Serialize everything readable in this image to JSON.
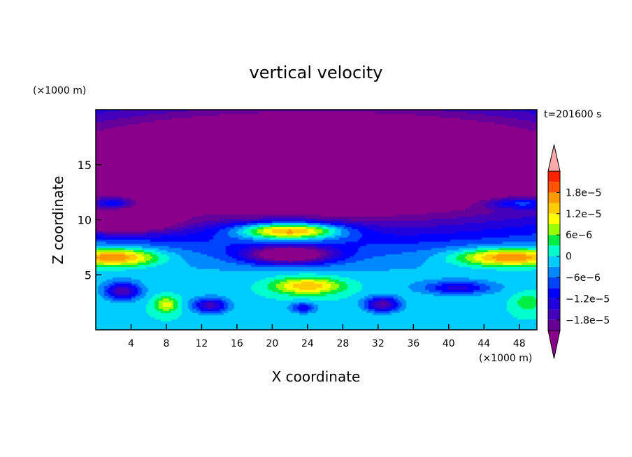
{
  "chart_data": {
    "type": "heatmap",
    "title": "vertical velocity",
    "xlabel": "X coordinate",
    "ylabel": "Z coordinate",
    "x_unit": "(×1000 m)",
    "y_unit": "(×1000 m)",
    "time_label": "t=201600 s",
    "xlim": [
      0,
      50
    ],
    "ylim": [
      0,
      20
    ],
    "x_ticks": [
      4,
      8,
      12,
      16,
      20,
      24,
      28,
      32,
      36,
      40,
      44,
      48
    ],
    "y_ticks": [
      5,
      10,
      15
    ],
    "colorbar": {
      "levels": [
        -2.1e-05,
        -1.8e-05,
        -1.5e-05,
        -1.2e-05,
        -9e-06,
        -6e-06,
        -3e-06,
        0,
        3e-06,
        6e-06,
        9e-06,
        1.2e-05,
        1.5e-05,
        1.8e-05,
        2.1e-05
      ],
      "tick_values": [
        1.8e-05,
        1.2e-05,
        6e-06,
        0,
        -6e-06,
        -1.2e-05,
        -1.8e-05
      ],
      "tick_labels": [
        "1.8e−5",
        "1.2e−5",
        "6e−6",
        "0",
        "−6e−6",
        "−1.2e−5",
        "−1.8e−5"
      ],
      "colors": [
        "#660099",
        "#4400bb",
        "#2200dd",
        "#0000ff",
        "#0044ff",
        "#0088ff",
        "#00ccff",
        "#00ffcc",
        "#00ee44",
        "#99ff00",
        "#ffff00",
        "#ffcc00",
        "#ff9900",
        "#ff5500",
        "#ff2200"
      ],
      "under_color": "#8b008b",
      "over_color": "#ffaaaa"
    },
    "field_features": [
      {
        "x": 25,
        "z": 15,
        "sx": 40,
        "sz": 6,
        "value": -4e-05
      },
      {
        "x": 22,
        "z": 9.0,
        "sx": 6,
        "sz": 0.8,
        "value": 3e-05
      },
      {
        "x": 2,
        "z": 6.6,
        "sx": 5,
        "sz": 0.8,
        "value": 2.2e-05
      },
      {
        "x": 47,
        "z": 6.6,
        "sx": 6,
        "sz": 0.8,
        "value": 2.2e-05
      },
      {
        "x": 24,
        "z": 4.0,
        "sx": 4,
        "sz": 0.8,
        "value": 1.6e-05
      },
      {
        "x": 8,
        "z": 2.3,
        "sx": 1.3,
        "sz": 0.7,
        "value": 1.1e-05
      },
      {
        "x": 49,
        "z": 2.5,
        "sx": 1.5,
        "sz": 0.8,
        "value": 6e-06
      },
      {
        "x": 22,
        "z": 6.8,
        "sx": 5,
        "sz": 0.8,
        "value": -2.4e-05
      },
      {
        "x": 2.5,
        "z": 9.8,
        "sx": 6,
        "sz": 1.0,
        "value": -2.2e-05
      },
      {
        "x": 3,
        "z": 3.5,
        "sx": 2,
        "sz": 0.8,
        "value": -1.7e-05
      },
      {
        "x": 13,
        "z": 2.2,
        "sx": 2,
        "sz": 0.7,
        "value": -1.6e-05
      },
      {
        "x": 32.5,
        "z": 2.3,
        "sx": 2,
        "sz": 0.7,
        "value": -1.8e-05
      },
      {
        "x": 41,
        "z": 3.8,
        "sx": 4,
        "sz": 0.6,
        "value": -1.2e-05
      },
      {
        "x": 23.5,
        "z": 2.0,
        "sx": 1.5,
        "sz": 0.5,
        "value": -1.1e-05
      },
      {
        "x": 2,
        "z": 11.5,
        "sx": 2,
        "sz": 0.5,
        "value": 1.2e-05
      },
      {
        "x": 48,
        "z": 11.5,
        "sx": 4,
        "sz": 0.5,
        "value": 1.2e-05
      }
    ]
  }
}
